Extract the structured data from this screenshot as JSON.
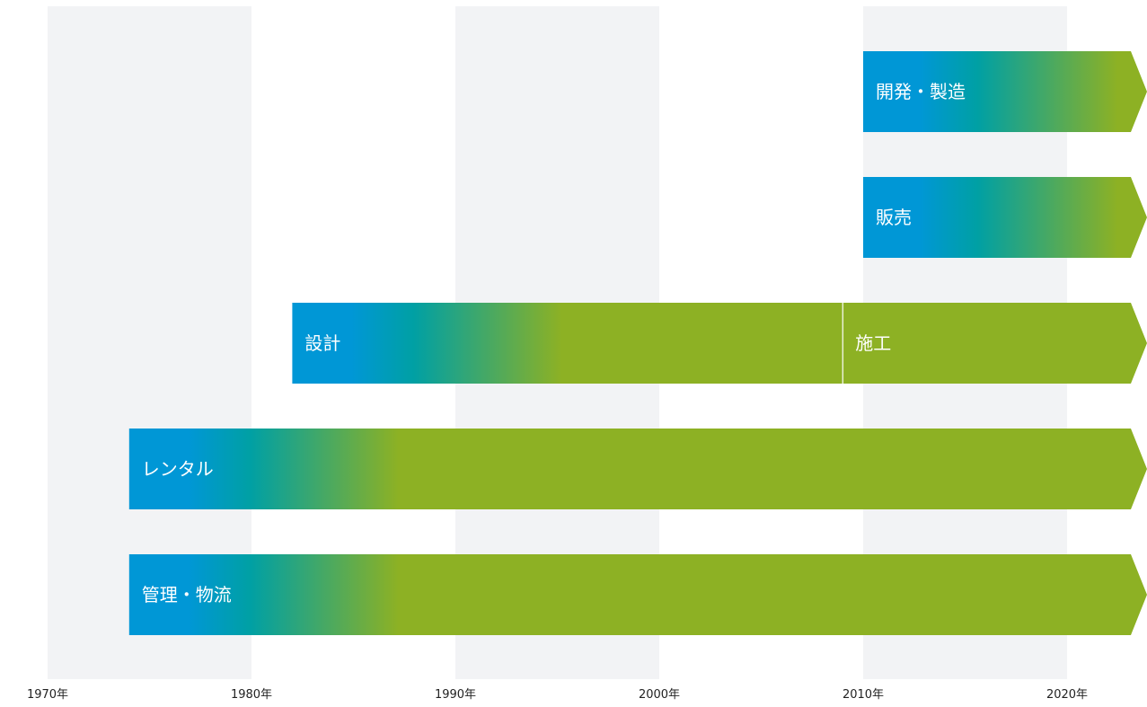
{
  "chart_data": {
    "type": "timeline",
    "title": "",
    "xlabel": "",
    "ylabel": "",
    "x_axis": {
      "min": 1970,
      "max": 2024,
      "ticks": [
        {
          "value": 1970,
          "label": "1970年"
        },
        {
          "value": 1980,
          "label": "1980年"
        },
        {
          "value": 1990,
          "label": "1990年"
        },
        {
          "value": 2000,
          "label": "2000年"
        },
        {
          "value": 2010,
          "label": "2010年"
        },
        {
          "value": 2020,
          "label": "2020年"
        }
      ],
      "shaded_decades": [
        [
          1970,
          1980
        ],
        [
          1990,
          2000
        ],
        [
          2010,
          2020
        ]
      ]
    },
    "series": [
      {
        "name": "開発・製造",
        "segments": [
          {
            "label": "開発・製造",
            "start": 2010,
            "end": 2024
          }
        ],
        "ongoing": true
      },
      {
        "name": "販売",
        "segments": [
          {
            "label": "販売",
            "start": 2010,
            "end": 2024
          }
        ],
        "ongoing": true
      },
      {
        "name": "設計・施工",
        "segments": [
          {
            "label": "設計",
            "start": 1982,
            "end": 2009
          },
          {
            "label": "施工",
            "start": 2009,
            "end": 2024
          }
        ],
        "ongoing": true
      },
      {
        "name": "レンタル",
        "segments": [
          {
            "label": "レンタル",
            "start": 1974,
            "end": 2024
          }
        ],
        "ongoing": true
      },
      {
        "name": "管理・物流",
        "segments": [
          {
            "label": "管理・物流",
            "start": 1974,
            "end": 2024
          }
        ],
        "ongoing": true
      }
    ],
    "colors": {
      "start": "#0097d6",
      "mid": "#00a0a4",
      "end": "#8db124",
      "band": "#f2f3f5",
      "divider": "#e9f0d6"
    }
  }
}
